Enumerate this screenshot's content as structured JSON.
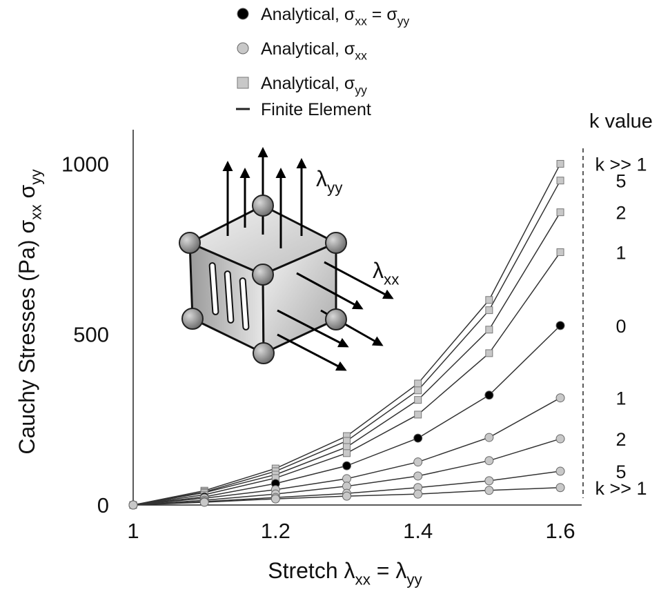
{
  "chart_data": {
    "type": "line",
    "x": [
      1,
      1.1,
      1.2,
      1.3,
      1.4,
      1.5,
      1.6
    ],
    "xlim": [
      1,
      1.63
    ],
    "ylim": [
      0,
      1100
    ],
    "xticks": [
      1,
      1.2,
      1.4,
      1.6
    ],
    "yticks": [
      0,
      500,
      1000
    ],
    "grid": false,
    "xlabel": [
      "Stretch λ",
      {
        "sub": "xx"
      },
      " = λ",
      {
        "sub": "yy"
      }
    ],
    "ylabel": [
      "Cauchy Stresses (Pa)  σ",
      {
        "sub": "xx"
      },
      "  σ",
      {
        "sub": "yy"
      }
    ],
    "series_header": "k value",
    "line_color": "#333333",
    "series": [
      {
        "name": "k >> 1",
        "marker": "square",
        "color": "#c8c8c8",
        "values": [
          0,
          42,
          107,
          202,
          356,
          601,
          1000
        ]
      },
      {
        "name": "5",
        "marker": "square",
        "color": "#c8c8c8",
        "values": [
          0,
          38,
          99,
          188,
          336,
          571,
          951
        ]
      },
      {
        "name": "2",
        "marker": "square",
        "color": "#c8c8c8",
        "values": [
          0,
          36,
          89,
          170,
          308,
          514,
          858
        ]
      },
      {
        "name": "1",
        "marker": "square",
        "color": "#c8c8c8",
        "values": [
          0,
          30,
          79,
          152,
          265,
          445,
          741
        ]
      },
      {
        "name": "0",
        "marker": "circle",
        "color": "#000000",
        "values": [
          0,
          24,
          63,
          115,
          196,
          322,
          526
        ]
      },
      {
        "name": "1",
        "marker": "circle",
        "color": "#c8c8c8",
        "values": [
          0,
          20,
          45,
          77,
          126,
          198,
          314
        ]
      },
      {
        "name": "2",
        "marker": "circle",
        "color": "#c8c8c8",
        "values": [
          0,
          14,
          32,
          55,
          85,
          130,
          194
        ]
      },
      {
        "name": "5",
        "marker": "circle",
        "color": "#c8c8c8",
        "values": [
          0,
          10,
          22,
          34,
          51,
          71,
          99
        ]
      },
      {
        "name": "k >> 1",
        "marker": "circle",
        "color": "#c8c8c8",
        "values": [
          0,
          8,
          18,
          26,
          32,
          43,
          51
        ]
      }
    ],
    "legend": [
      {
        "label": [
          "Analytical, σ",
          {
            "sub": "xx"
          },
          " = σ",
          {
            "sub": "yy"
          }
        ],
        "marker": "circle",
        "color": "#000000"
      },
      {
        "label": [
          "Analytical, σ",
          {
            "sub": "xx"
          }
        ],
        "marker": "circle",
        "color": "#c8c8c8"
      },
      {
        "label": [
          "Analytical, σ",
          {
            "sub": "yy"
          }
        ],
        "marker": "square",
        "color": "#c8c8c8"
      },
      {
        "label": [
          "Finite Element"
        ],
        "marker": "line",
        "color": "#222222"
      }
    ],
    "annotations": [
      [
        "λ",
        {
          "sub": "yy"
        }
      ],
      [
        "λ",
        {
          "sub": "xx"
        }
      ]
    ]
  }
}
